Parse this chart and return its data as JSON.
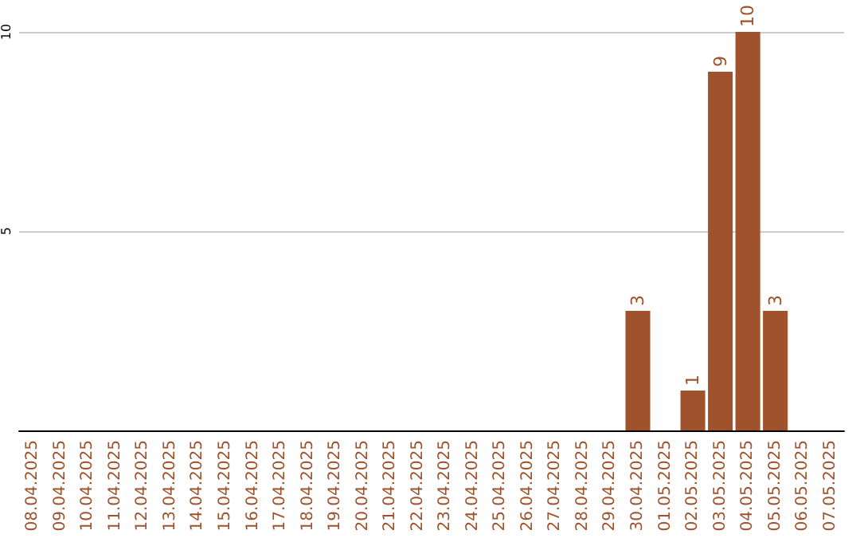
{
  "chart_data": {
    "type": "bar",
    "categories": [
      "08.04.2025",
      "09.04.2025",
      "10.04.2025",
      "11.04.2025",
      "12.04.2025",
      "13.04.2025",
      "14.04.2025",
      "15.04.2025",
      "16.04.2025",
      "17.04.2025",
      "18.04.2025",
      "19.04.2025",
      "20.04.2025",
      "21.04.2025",
      "22.04.2025",
      "23.04.2025",
      "24.04.2025",
      "25.04.2025",
      "26.04.2025",
      "27.04.2025",
      "28.04.2025",
      "29.04.2025",
      "30.04.2025",
      "01.05.2025",
      "02.05.2025",
      "03.05.2025",
      "04.05.2025",
      "05.05.2025",
      "06.05.2025",
      "07.05.2025"
    ],
    "values": [
      0,
      0,
      0,
      0,
      0,
      0,
      0,
      0,
      0,
      0,
      0,
      0,
      0,
      0,
      0,
      0,
      0,
      0,
      0,
      0,
      0,
      0,
      3,
      0,
      1,
      9,
      10,
      3,
      0,
      0
    ],
    "value_labels": [
      null,
      null,
      null,
      null,
      null,
      null,
      null,
      null,
      null,
      null,
      null,
      null,
      null,
      null,
      null,
      null,
      null,
      null,
      null,
      null,
      null,
      null,
      "3",
      null,
      "1",
      "9",
      "10",
      "3",
      null,
      null
    ],
    "color": "#a0522d",
    "ylim": [
      0,
      10
    ],
    "yticks": [
      5,
      10
    ],
    "grid": "y"
  }
}
